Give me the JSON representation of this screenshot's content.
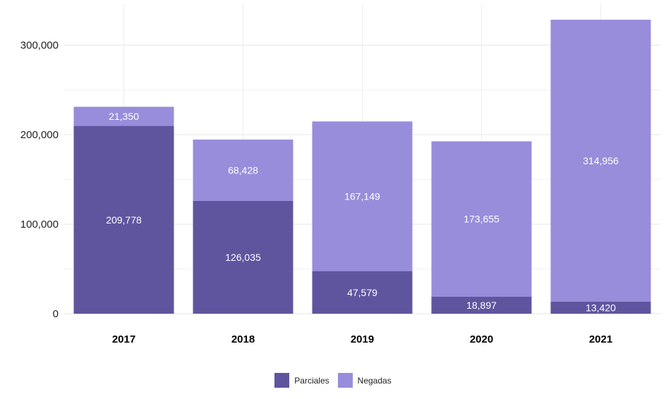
{
  "chart_data": {
    "type": "bar",
    "stacked": true,
    "categories": [
      "2017",
      "2018",
      "2019",
      "2020",
      "2021"
    ],
    "series": [
      {
        "name": "Parciales",
        "color": "#5f559f",
        "values": [
          209778,
          126035,
          47579,
          18897,
          13420
        ],
        "labels": [
          "209,778",
          "126,035",
          "47,579",
          "18,897",
          "13,420"
        ]
      },
      {
        "name": "Negadas",
        "color": "#988ddb",
        "values": [
          21350,
          68428,
          167149,
          173655,
          314956
        ],
        "labels": [
          "21,350",
          "68,428",
          "167,149",
          "173,655",
          "314,956"
        ]
      }
    ],
    "yticks": [
      0,
      100000,
      200000,
      300000
    ],
    "ytick_labels": [
      "0",
      "100,000",
      "200,000",
      "300,000"
    ],
    "ylim": [
      0,
      345000
    ],
    "grid": true,
    "legend_position": "bottom"
  }
}
